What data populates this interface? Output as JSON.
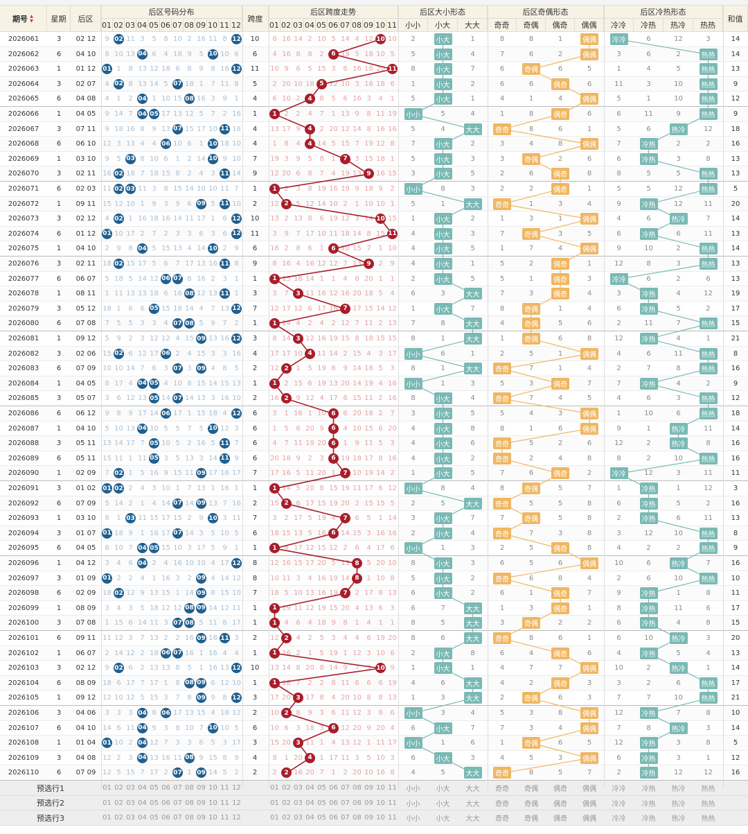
{
  "headers": {
    "issue": "期号",
    "week": "星期",
    "back": "后区",
    "dist": "后区号码分布",
    "span": "跨度",
    "spanTrend": "后区跨度走势",
    "bigsmall": "后区大小形态",
    "oddeven": "后区奇偶形态",
    "coldhot": "后区冷热形态",
    "sum": "和值"
  },
  "ballNums": [
    "01",
    "02",
    "03",
    "04",
    "05",
    "06",
    "07",
    "08",
    "09",
    "10",
    "11",
    "12"
  ],
  "spanNums": [
    "01",
    "02",
    "03",
    "04",
    "05",
    "06",
    "07",
    "08",
    "09",
    "10",
    "11"
  ],
  "bsSub": [
    "小小",
    "小大",
    "大大"
  ],
  "oeSub": [
    "奇奇",
    "奇偶",
    "偶奇",
    "偶偶"
  ],
  "chSub": [
    "冷冷",
    "冷热",
    "热冷",
    "热热"
  ],
  "rows": [
    [
      "2026061",
      "3",
      "02 12",
      10,
      "小大",
      "偶偶",
      "冷冷",
      14
    ],
    [
      "2026062",
      "6",
      "04 10",
      6,
      "小大",
      "偶偶",
      "热热",
      14
    ],
    [
      "2026063",
      "1",
      "01 12",
      11,
      "小大",
      "奇偶",
      "热热",
      13
    ],
    [
      "2026064",
      "3",
      "02 07",
      5,
      "小大",
      "偶奇",
      "热热",
      9
    ],
    [
      "2026065",
      "6",
      "04 08",
      4,
      "小大",
      "偶偶",
      "热热",
      12
    ],
    [
      "2026066",
      "1",
      "04 05",
      1,
      "小小",
      "偶奇",
      "热热",
      9
    ],
    [
      "2026067",
      "3",
      "07 11",
      4,
      "大大",
      "奇奇",
      "热冷",
      18
    ],
    [
      "2026068",
      "6",
      "06 10",
      4,
      "小大",
      "偶偶",
      "冷热",
      16
    ],
    [
      "2026069",
      "1",
      "03 10",
      7,
      "小大",
      "奇偶",
      "冷热",
      13
    ],
    [
      "2026070",
      "3",
      "02 11",
      9,
      "小大",
      "偶奇",
      "热热",
      13
    ],
    [
      "2026071",
      "6",
      "02 03",
      1,
      "小小",
      "偶奇",
      "热热",
      5
    ],
    [
      "2026072",
      "1",
      "09 11",
      2,
      "大大",
      "奇奇",
      "冷热",
      20
    ],
    [
      "2026073",
      "3",
      "02 12",
      10,
      "小大",
      "偶偶",
      "热冷",
      14
    ],
    [
      "2026074",
      "6",
      "01 12",
      11,
      "小大",
      "奇偶",
      "冷热",
      13
    ],
    [
      "2026075",
      "1",
      "04 10",
      6,
      "小大",
      "偶偶",
      "热热",
      14
    ],
    [
      "2026076",
      "3",
      "02 11",
      9,
      "小大",
      "偶奇",
      "热热",
      13
    ],
    [
      "2026077",
      "6",
      "06 07",
      1,
      "小大",
      "偶奇",
      "冷冷",
      13
    ],
    [
      "2026078",
      "1",
      "08 11",
      3,
      "大大",
      "偶奇",
      "冷热",
      19
    ],
    [
      "2026079",
      "3",
      "05 12",
      7,
      "小大",
      "奇偶",
      "冷热",
      17
    ],
    [
      "2026080",
      "6",
      "07 08",
      1,
      "大大",
      "奇偶",
      "热热",
      15
    ],
    [
      "2026081",
      "1",
      "09 12",
      3,
      "大大",
      "奇偶",
      "冷热",
      21
    ],
    [
      "2026082",
      "3",
      "02 06",
      4,
      "小小",
      "偶偶",
      "热热",
      8
    ],
    [
      "2026083",
      "6",
      "07 09",
      2,
      "大大",
      "奇奇",
      "热热",
      16
    ],
    [
      "2026084",
      "1",
      "04 05",
      1,
      "小小",
      "偶奇",
      "冷热",
      9
    ],
    [
      "2026085",
      "3",
      "05 07",
      2,
      "小大",
      "奇奇",
      "热热",
      12
    ],
    [
      "2026086",
      "6",
      "06 12",
      6,
      "小大",
      "偶偶",
      "热热",
      18
    ],
    [
      "2026087",
      "1",
      "04 10",
      6,
      "小大",
      "偶偶",
      "热冷",
      14
    ],
    [
      "2026088",
      "3",
      "05 11",
      6,
      "小大",
      "奇奇",
      "热冷",
      16
    ],
    [
      "2026089",
      "6",
      "05 11",
      6,
      "小大",
      "奇奇",
      "热热",
      16
    ],
    [
      "2026090",
      "1",
      "02 09",
      7,
      "小大",
      "偶奇",
      "冷冷",
      11
    ],
    [
      "2026091",
      "3",
      "01 02",
      1,
      "小小",
      "奇偶",
      "冷热",
      3
    ],
    [
      "2026092",
      "6",
      "07 09",
      2,
      "大大",
      "奇奇",
      "冷热",
      16
    ],
    [
      "2026093",
      "1",
      "03 10",
      7,
      "小大",
      "奇偶",
      "冷热",
      13
    ],
    [
      "2026094",
      "3",
      "01 07",
      6,
      "小大",
      "奇奇",
      "热热",
      8
    ],
    [
      "2026095",
      "6",
      "04 05",
      1,
      "小小",
      "偶奇",
      "热热",
      9
    ],
    [
      "2026096",
      "1",
      "04 12",
      8,
      "小大",
      "偶偶",
      "热冷",
      16
    ],
    [
      "2026097",
      "3",
      "01 09",
      8,
      "小大",
      "奇奇",
      "热热",
      10
    ],
    [
      "2026098",
      "6",
      "02 09",
      7,
      "小大",
      "偶奇",
      "冷热",
      11
    ],
    [
      "2026099",
      "1",
      "08 09",
      1,
      "大大",
      "偶奇",
      "冷热",
      17
    ],
    [
      "2026100",
      "3",
      "07 08",
      1,
      "大大",
      "奇偶",
      "冷热",
      15
    ],
    [
      "2026101",
      "6",
      "09 11",
      2,
      "大大",
      "奇奇",
      "热冷",
      20
    ],
    [
      "2026102",
      "1",
      "06 07",
      1,
      "小大",
      "偶奇",
      "冷热",
      13
    ],
    [
      "2026103",
      "3",
      "02 12",
      10,
      "小大",
      "偶偶",
      "热冷",
      14
    ],
    [
      "2026104",
      "6",
      "08 09",
      1,
      "大大",
      "偶奇",
      "热热",
      17
    ],
    [
      "2026105",
      "1",
      "09 12",
      3,
      "大大",
      "奇偶",
      "热热",
      21
    ],
    [
      "2026106",
      "3",
      "04 06",
      2,
      "小小",
      "偶偶",
      "冷热",
      10
    ],
    [
      "2026107",
      "6",
      "04 10",
      6,
      "小大",
      "偶偶",
      "热冷",
      14
    ],
    [
      "2026108",
      "1",
      "01 04",
      3,
      "小小",
      "奇偶",
      "冷热",
      5
    ],
    [
      "2026109",
      "3",
      "04 08",
      4,
      "小大",
      "偶偶",
      "冷热",
      12
    ],
    [
      "2026110",
      "6",
      "07 09",
      2,
      "大大",
      "奇奇",
      "冷热",
      16
    ]
  ],
  "predict": [
    "预选行1",
    "预选行2",
    "预选行3"
  ],
  "colors": {
    "blue": "#1f5f8f",
    "red": "#a81d2a",
    "teal": "#7ab9b4",
    "orange": "#f0b661"
  }
}
